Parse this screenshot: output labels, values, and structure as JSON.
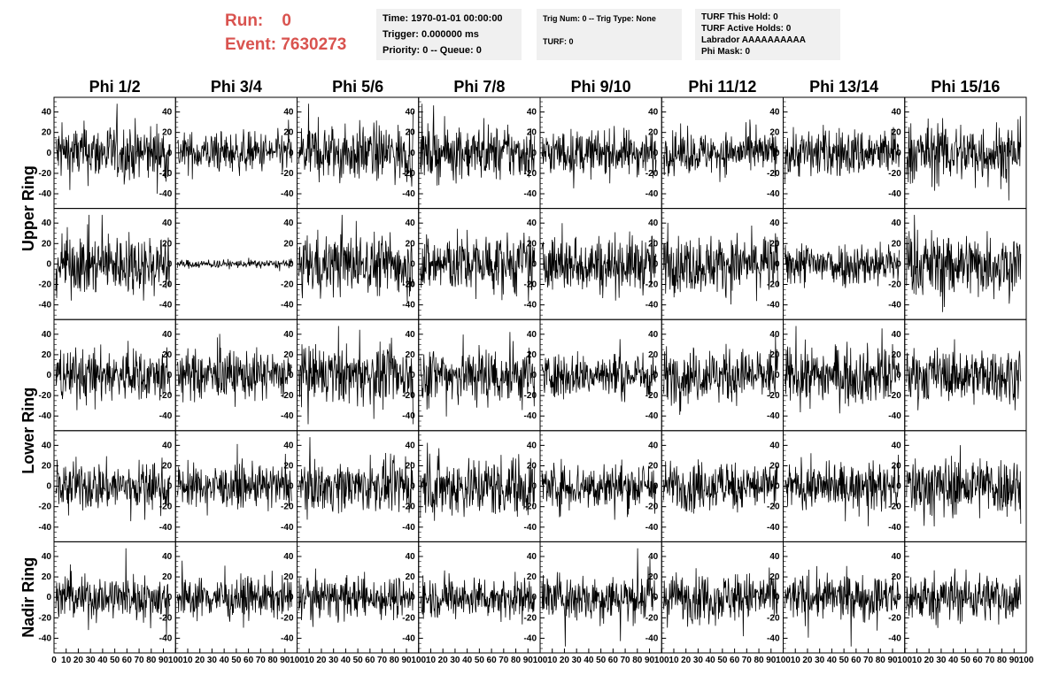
{
  "run": {
    "run_label": "Run:",
    "run_value": "0",
    "event_label": "Event:",
    "event_value": "7630273"
  },
  "header_box_1": {
    "lines": [
      "Time: 1970-01-01 00:00:00",
      "Trigger: 0.000000 ms",
      "Priority: 0 -- Queue: 0"
    ]
  },
  "header_box_2": {
    "lines": [
      "Trig Num: 0 -- Trig Type: None",
      "TURF: 0"
    ]
  },
  "header_box_3": {
    "lines": [
      "TURF This Hold: 0",
      "TURF Active Holds: 0",
      "Labrador AAAAAAAAAA",
      "Phi Mask: 0"
    ]
  },
  "columns": [
    "Phi 1/2",
    "Phi 3/4",
    "Phi 5/6",
    "Phi 7/8",
    "Phi 9/10",
    "Phi 11/12",
    "Phi 13/14",
    "Phi 15/16"
  ],
  "rows": [
    "Upper Ring",
    "Upper Ring",
    "Lower Ring",
    "Lower Ring",
    "Nadir Ring"
  ],
  "colors": {
    "run_text": "#d9534f",
    "box_bg": "#f0f0f0",
    "trace": "#000000"
  },
  "chart_data": {
    "type": "line",
    "description_rows": [
      "Upper Ring",
      "Upper Ring",
      "Lower Ring",
      "Lower Ring",
      "Nadir Ring"
    ],
    "columns": [
      "Phi 1/2",
      "Phi 3/4",
      "Phi 5/6",
      "Phi 7/8",
      "Phi 9/10",
      "Phi 11/12",
      "Phi 13/14",
      "Phi 15/16"
    ],
    "ylim": [
      -50,
      50
    ],
    "yticks": [
      -40,
      -20,
      0,
      20,
      40
    ],
    "xlim": [
      0,
      100
    ],
    "xticks": [
      0,
      10,
      20,
      30,
      40,
      50,
      60,
      70,
      80,
      90,
      100
    ],
    "samples_per_trace": 260,
    "amplitude_scale": [
      [
        14,
        10,
        14,
        13,
        11,
        10,
        12,
        15
      ],
      [
        15,
        2,
        15,
        15,
        14,
        14,
        11,
        16
      ],
      [
        13,
        12,
        14,
        15,
        11,
        13,
        14,
        13
      ],
      [
        12,
        10,
        12,
        15,
        12,
        12,
        11,
        15
      ],
      [
        11,
        10,
        10,
        10,
        12,
        12,
        11,
        12
      ]
    ]
  }
}
